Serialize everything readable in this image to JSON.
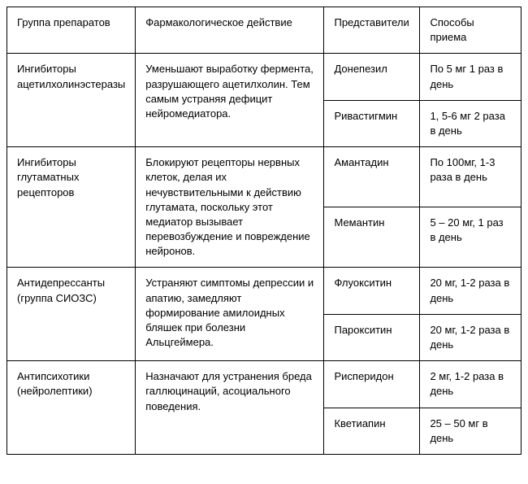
{
  "table": {
    "headers": {
      "group": "Группа препаратов",
      "action": "Фармакологическое действие",
      "representatives": "Представители",
      "dosage": "Способы приема"
    },
    "rows": [
      {
        "group": "Ингибиторы ацетилхолинэстеразы",
        "action": "Уменьшают выработку фермента, разрушающего ацетилхолин. Тем самым устраняя дефицит нейромедиатора.",
        "reps": [
          {
            "name": "Донепезил",
            "dose": "По 5 мг 1 раз в день"
          },
          {
            "name": "Ривастигмин",
            "dose": "1, 5-6 мг 2 раза в день"
          }
        ]
      },
      {
        "group": "Ингибиторы глутаматных рецепторов",
        "action": "Блокируют рецепторы нервных клеток, делая их нечувствительными к действию глутамата, поскольку этот медиатор вызывает перевозбуждение и повреждение нейронов.",
        "reps": [
          {
            "name": "Амантадин",
            "dose": "По 100мг, 1-3 раза в день"
          },
          {
            "name": "Мемантин",
            "dose": "5 – 20 мг, 1 раз в день"
          }
        ]
      },
      {
        "group": "Антидепрессанты (группа СИОЗС)",
        "action": "Устраняют симптомы депрессии и апатию, замедляют формирование амилоидных бляшек при болезни Альцгеймера.",
        "reps": [
          {
            "name": "Флуокситин",
            "dose": "20 мг, 1-2 раза в день"
          },
          {
            "name": "Парокситин",
            "dose": "20 мг, 1-2 раза в день"
          }
        ]
      },
      {
        "group": "Антипсихотики (нейролептики)",
        "action": "Назначают для устранения бреда галлюцинаций, асоциального поведения.",
        "reps": [
          {
            "name": "Рисперидон",
            "dose": "2 мг, 1-2 раза в день"
          },
          {
            "name": "Кветиапин",
            "dose": "25 – 50 мг в день"
          }
        ]
      }
    ]
  }
}
